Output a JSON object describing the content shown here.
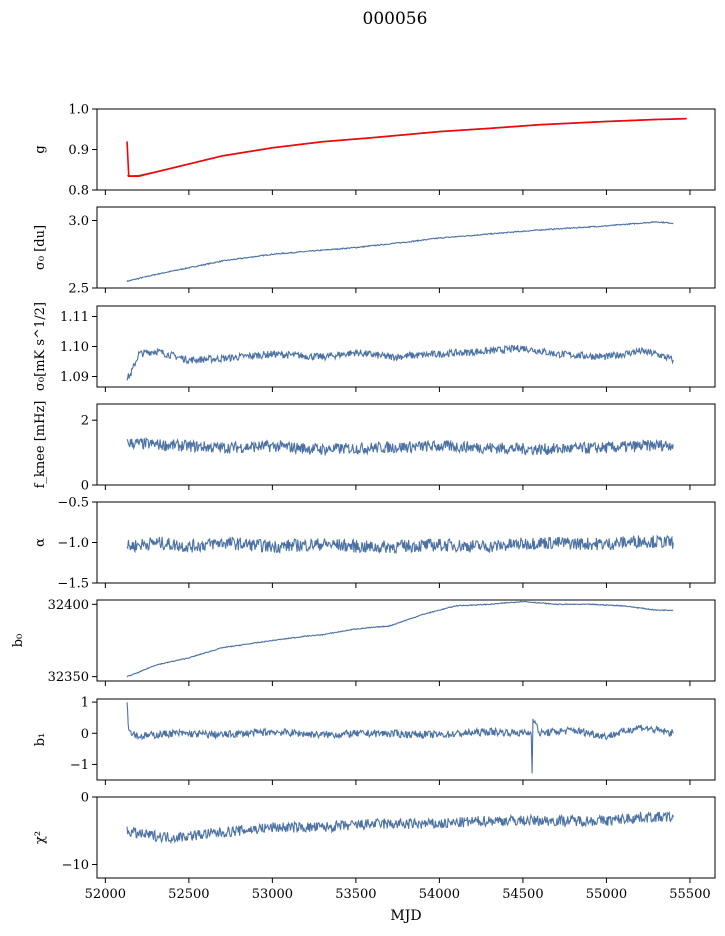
{
  "figure": {
    "title": "000056"
  },
  "colors": {
    "series": "#4c72a4",
    "overlay": "#ff0000",
    "axis": "#000000"
  },
  "chart_data": [
    {
      "type": "line",
      "ylabel": "g",
      "ylim": [
        0.8,
        1.0
      ],
      "yticks": [
        0.8,
        0.9,
        1.0
      ],
      "ytick_labels": [
        "0.8",
        "0.9",
        "1.0"
      ],
      "series": [
        {
          "x": [
            52130,
            52200,
            52300,
            52500,
            52700,
            53000,
            53300,
            53600,
            54000,
            54300,
            54600,
            55000,
            55300,
            55400,
            55480
          ],
          "y": [
            0.835,
            0.836,
            0.845,
            0.865,
            0.885,
            0.905,
            0.92,
            0.93,
            0.945,
            0.953,
            0.962,
            0.97,
            0.975,
            0.976,
            0.977
          ]
        },
        {
          "x": [
            52130,
            52140,
            52200,
            52300,
            52500,
            52700,
            53000,
            53300,
            53600,
            54000,
            54300,
            54600,
            55000,
            55300,
            55400,
            55480
          ],
          "y": [
            0.92,
            0.834,
            0.834,
            0.844,
            0.864,
            0.884,
            0.904,
            0.919,
            0.929,
            0.944,
            0.952,
            0.961,
            0.969,
            0.974,
            0.975,
            0.976
          ]
        }
      ]
    },
    {
      "type": "line",
      "ylabel": "σ₀ [du]",
      "ylim": [
        2.5,
        3.1
      ],
      "yticks": [
        2.5,
        3.0
      ],
      "ytick_labels": [
        "2.5",
        "3.0"
      ],
      "series": [
        {
          "x": [
            52130,
            52300,
            52500,
            52700,
            53000,
            53300,
            53500,
            53800,
            54000,
            54300,
            54600,
            55000,
            55300,
            55400
          ],
          "y": [
            2.55,
            2.6,
            2.65,
            2.7,
            2.75,
            2.78,
            2.8,
            2.84,
            2.87,
            2.9,
            2.93,
            2.96,
            2.99,
            2.98
          ]
        }
      ]
    },
    {
      "type": "line",
      "ylabel": "σ₀[mK s^1/2]",
      "ylim": [
        1.0865,
        1.1135
      ],
      "yticks": [
        1.09,
        1.1,
        1.11
      ],
      "ytick_labels": [
        "1.09",
        "1.10",
        "1.11"
      ],
      "series": [
        {
          "x": [
            52130,
            52150,
            52200,
            52300,
            52500,
            52700,
            53000,
            53300,
            53500,
            53700,
            54000,
            54300,
            54500,
            54700,
            55000,
            55200,
            55300,
            55400
          ],
          "y": [
            1.0895,
            1.0905,
            1.0975,
            1.0985,
            1.0955,
            1.096,
            1.0975,
            1.0965,
            1.098,
            1.0965,
            1.0975,
            1.0985,
            1.0995,
            1.0975,
            1.0965,
            1.0985,
            1.0975,
            1.0955
          ]
        }
      ]
    },
    {
      "type": "line",
      "ylabel": "f_knee [mHz]",
      "ylim": [
        0,
        2.5
      ],
      "yticks": [
        0,
        2
      ],
      "ytick_labels": [
        "0",
        "2"
      ],
      "series": [
        {
          "x": [
            52130,
            52300,
            52500,
            52700,
            53000,
            53300,
            53600,
            54000,
            54300,
            54600,
            55000,
            55200,
            55400
          ],
          "y": [
            1.3,
            1.25,
            1.2,
            1.15,
            1.2,
            1.1,
            1.15,
            1.2,
            1.15,
            1.1,
            1.15,
            1.2,
            1.25
          ]
        }
      ]
    },
    {
      "type": "line",
      "ylabel": "α",
      "ylim": [
        -1.5,
        -0.5
      ],
      "yticks": [
        -1.5,
        -1.0,
        -0.5
      ],
      "ytick_labels": [
        "−1.5",
        "−1.0",
        "−0.5"
      ],
      "series": [
        {
          "x": [
            52130,
            52300,
            52500,
            52700,
            53000,
            53300,
            53600,
            54000,
            54300,
            54600,
            55000,
            55200,
            55400
          ],
          "y": [
            -1.05,
            -1.0,
            -1.05,
            -1.0,
            -1.05,
            -1.02,
            -1.06,
            -1.03,
            -1.05,
            -1.0,
            -1.02,
            -0.98,
            -1.0
          ]
        }
      ]
    },
    {
      "type": "line",
      "ylabel": "b₀",
      "ylim": [
        32347,
        32403
      ],
      "yticks": [
        32350,
        32400
      ],
      "ytick_labels": [
        "32350",
        "32400"
      ],
      "series": [
        {
          "x": [
            52130,
            52200,
            52300,
            52500,
            52700,
            53000,
            53200,
            53300,
            53500,
            53700,
            53900,
            54100,
            54300,
            54500,
            54700,
            54900,
            55100,
            55300,
            55400
          ],
          "y": [
            32350,
            32353,
            32358,
            32363,
            32370,
            32375,
            32378,
            32379,
            32383,
            32385,
            32393,
            32399,
            32400,
            32402,
            32400,
            32400,
            32399,
            32396,
            32396
          ]
        }
      ]
    },
    {
      "type": "line",
      "ylabel": "b₁",
      "ylim": [
        -1.5,
        1.1
      ],
      "yticks": [
        -1,
        0,
        1
      ],
      "ytick_labels": [
        "−1",
        "0",
        "1"
      ],
      "series": [
        {
          "x": [
            52130,
            52140,
            52200,
            52400,
            52700,
            53000,
            53300,
            53600,
            54000,
            54300,
            54550,
            54555,
            54560,
            54600,
            54800,
            55000,
            55200,
            55400
          ],
          "y": [
            1.0,
            0.1,
            -0.1,
            0.0,
            -0.05,
            0.05,
            -0.05,
            0.0,
            -0.05,
            0.05,
            0.0,
            -1.3,
            0.5,
            0.0,
            0.1,
            -0.1,
            0.2,
            0.0
          ]
        }
      ]
    },
    {
      "type": "line",
      "ylabel": "χ²",
      "ylim": [
        -12,
        0
      ],
      "yticks": [
        -10,
        0
      ],
      "ytick_labels": [
        "−10",
        "0"
      ],
      "series": [
        {
          "x": [
            52130,
            52200,
            52400,
            52600,
            52800,
            53000,
            53300,
            53600,
            54000,
            54300,
            54600,
            55000,
            55200,
            55400
          ],
          "y": [
            -5,
            -5.5,
            -6,
            -5.5,
            -5,
            -4.5,
            -4.5,
            -4,
            -4,
            -3.5,
            -3.5,
            -3.5,
            -3,
            -3
          ]
        }
      ]
    }
  ],
  "x_axis": {
    "label": "MJD",
    "xlim": [
      51950,
      55650
    ],
    "ticks": [
      52000,
      52500,
      53000,
      53500,
      54000,
      54500,
      55000,
      55500
    ],
    "tick_labels": [
      "52000",
      "52500",
      "53000",
      "53500",
      "54000",
      "54500",
      "55000",
      "55500"
    ]
  }
}
